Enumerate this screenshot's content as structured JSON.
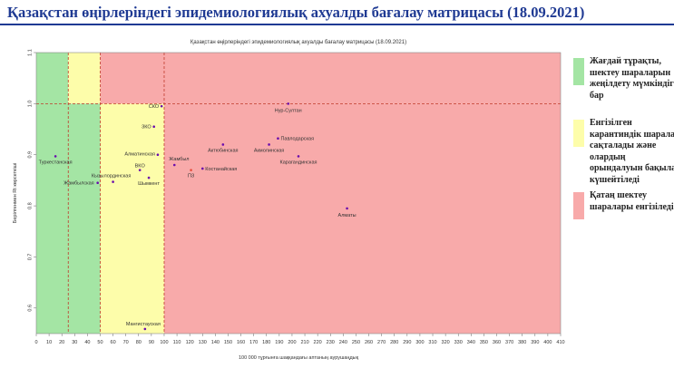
{
  "header": {
    "title": "Қазақстан өңірлеріндегі эпидемиологиялық ахуалды бағалау матрицасы  (18.09.2021)"
  },
  "legend": [
    {
      "label": "Жағдай тұрақты, шектеу шараларын жеңілдету мүмкіндігі бар",
      "color": "#a4e5a4"
    },
    {
      "label": "Енгізілген карантиндік шаралар сақталады және олардың орындалуын бақылау күшейтіледі",
      "color": "#fdfdaa"
    },
    {
      "label": "Қатаң шектеу шаралары енгізіледі",
      "color": "#f8aaaa"
    }
  ],
  "chart_data": {
    "type": "scatter",
    "title": "Қазақстан өңірлеріндегі эпидемиологиялық ахуалды бағалау матрицасы  (18.09.2021)",
    "xlabel": "100 000 тұрғынға шаққандағы аптаның аурушаңдық",
    "ylabel": "Берілгенмен Rt көрсеткіші",
    "xlim": [
      0,
      410
    ],
    "ylim": [
      0.55,
      1.1
    ],
    "xticks": [
      0,
      10,
      20,
      30,
      40,
      50,
      60,
      70,
      80,
      90,
      100,
      110,
      120,
      130,
      140,
      150,
      160,
      170,
      180,
      190,
      200,
      210,
      220,
      230,
      240,
      250,
      260,
      270,
      280,
      290,
      300,
      310,
      320,
      330,
      340,
      350,
      360,
      370,
      380,
      390,
      400,
      410
    ],
    "yticks": [
      0.6,
      0.7,
      0.8,
      0.9,
      1.0,
      1.1
    ],
    "ytick_labels": [
      "0.6",
      "0.7",
      "0.8",
      "0.9",
      "1.0",
      "1.1"
    ],
    "grid": false,
    "zones": [
      {
        "color": "#a4e5a4",
        "x": [
          0,
          25
        ],
        "y": [
          0.55,
          1.1
        ]
      },
      {
        "color": "#fdfdaa",
        "x": [
          25,
          50
        ],
        "y": [
          1.0,
          1.1
        ]
      },
      {
        "color": "#a4e5a4",
        "x": [
          0,
          50
        ],
        "y": [
          0.55,
          1.0
        ]
      },
      {
        "color": "#fdfdaa",
        "x": [
          50,
          100
        ],
        "y": [
          0.55,
          1.0
        ]
      },
      {
        "color": "#f8aaaa",
        "x": [
          50,
          410
        ],
        "y": [
          1.0,
          1.1
        ]
      },
      {
        "color": "#f8aaaa",
        "x": [
          100,
          410
        ],
        "y": [
          0.55,
          1.0
        ]
      }
    ],
    "reference_lines": [
      {
        "axis": "x",
        "value": 25,
        "color": "#c0392b"
      },
      {
        "axis": "x",
        "value": 50,
        "color": "#c0392b"
      },
      {
        "axis": "x",
        "value": 100,
        "color": "#c0392b"
      },
      {
        "axis": "y",
        "value": 1.0,
        "color": "#c0392b"
      }
    ],
    "points": [
      {
        "label": "Нур-Султан",
        "x": 197,
        "y": 1.0,
        "color": "#6a0dad"
      },
      {
        "label": "Туркестанская",
        "x": 15,
        "y": 0.897,
        "color": "#6a0dad"
      },
      {
        "label": "Жамбылская",
        "x": 48,
        "y": 0.845,
        "color": "#6a0dad"
      },
      {
        "label": "Кызылординская",
        "x": 60,
        "y": 0.847,
        "color": "#6a0dad"
      },
      {
        "label": "ВКО",
        "x": 81,
        "y": 0.87,
        "color": "#6a0dad"
      },
      {
        "label": "Алматинская",
        "x": 95,
        "y": 0.9,
        "color": "#6a0dad"
      },
      {
        "label": "Шымкент",
        "x": 88,
        "y": 0.855,
        "color": "#6a0dad"
      },
      {
        "label": "ЗКО",
        "x": 92,
        "y": 0.955,
        "color": "#6a0dad"
      },
      {
        "label": "СКО",
        "x": 98,
        "y": 0.995,
        "color": "#6a0dad"
      },
      {
        "label": "Карагандинская",
        "x": 205,
        "y": 0.897,
        "color": "#6a0dad"
      },
      {
        "label": "Костанайская",
        "x": 130,
        "y": 0.873,
        "color": "#6a0dad"
      },
      {
        "label": "Жамбыл",
        "x": 108,
        "y": 0.88,
        "color": "#6a0dad"
      },
      {
        "label": "ПЗ",
        "x": 121,
        "y": 0.87,
        "color": "#e74c3c"
      },
      {
        "label": "Актюбинская",
        "x": 146,
        "y": 0.92,
        "color": "#6a0dad"
      },
      {
        "label": "Акмолинская",
        "x": 182,
        "y": 0.92,
        "color": "#6a0dad"
      },
      {
        "label": "Павлодарская",
        "x": 189,
        "y": 0.932,
        "color": "#6a0dad"
      },
      {
        "label": "Алматы",
        "x": 243,
        "y": 0.795,
        "color": "#6a0dad"
      },
      {
        "label": "Мангистауская",
        "x": 85,
        "y": 0.559,
        "color": "#6a0dad"
      }
    ]
  }
}
